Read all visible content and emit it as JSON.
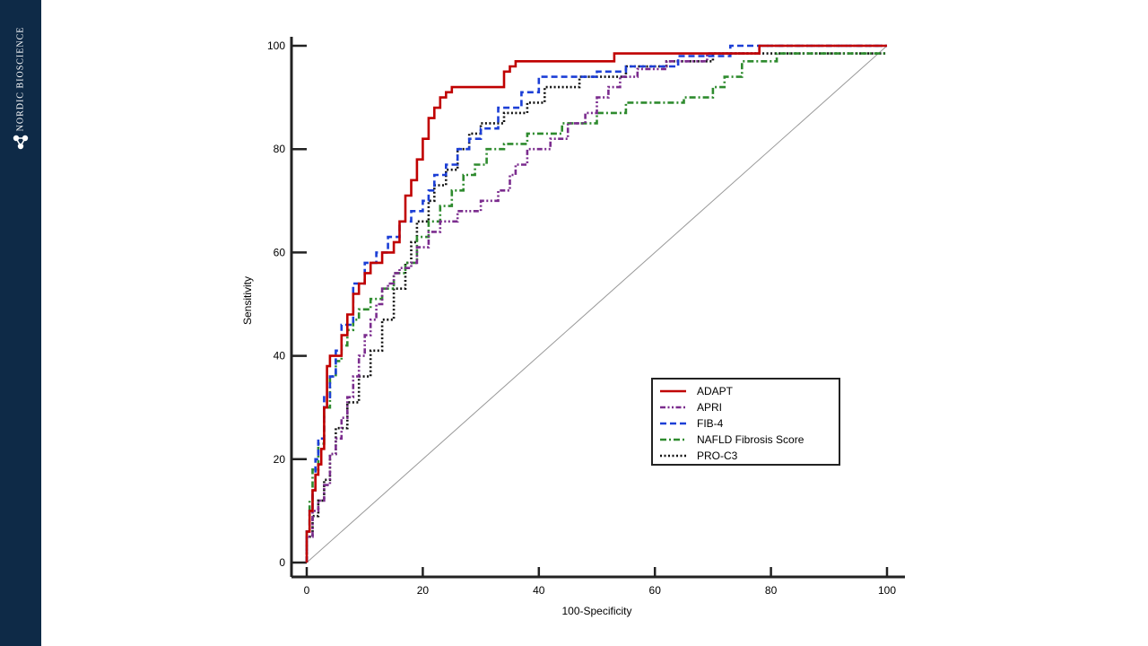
{
  "brand": {
    "name": "NORDIC BIOSCIENCE",
    "logo_icon": "molecule-icon",
    "sidebar_color": "#0e2a47"
  },
  "chart_data": {
    "type": "line",
    "title": "",
    "xlabel": "100-Specificity",
    "ylabel": "Sensitivity",
    "xlim": [
      0,
      100
    ],
    "ylim": [
      0,
      100
    ],
    "xticks": [
      0,
      20,
      40,
      60,
      80,
      100
    ],
    "yticks": [
      0,
      20,
      40,
      60,
      80,
      100
    ],
    "grid": false,
    "legend_position": "bottom-right",
    "reference_line": {
      "x": [
        0,
        100
      ],
      "y": [
        0,
        100
      ],
      "color": "#999999"
    },
    "series": [
      {
        "name": "ADAPT",
        "color": "#c00000",
        "dash": "solid",
        "x": [
          0,
          0,
          0.5,
          0.5,
          1,
          1,
          1.5,
          1.5,
          2,
          2,
          2.5,
          2.5,
          3,
          3,
          3.5,
          3.5,
          4,
          4,
          6,
          6,
          7,
          7,
          8,
          8,
          9,
          9,
          10,
          10,
          11,
          11,
          13,
          13,
          15,
          15,
          16,
          16,
          17,
          17,
          18,
          18,
          19,
          19,
          20,
          20,
          21,
          21,
          22,
          22,
          23,
          23,
          24,
          24,
          25,
          25,
          26,
          26,
          34,
          34,
          35,
          35,
          36,
          36,
          53,
          53,
          78,
          78,
          100
        ],
        "y": [
          0,
          6,
          6,
          10,
          10,
          14,
          14,
          17,
          17,
          19,
          19,
          22,
          22,
          30,
          30,
          38,
          38,
          40,
          40,
          44,
          44,
          48,
          48,
          52,
          52,
          54,
          54,
          56,
          56,
          58,
          58,
          60,
          60,
          62,
          62,
          66,
          66,
          71,
          71,
          74,
          74,
          78,
          78,
          82,
          82,
          86,
          86,
          88,
          88,
          90,
          90,
          91,
          91,
          92,
          92,
          92,
          92,
          95,
          95,
          96,
          96,
          97,
          97,
          98.5,
          98.5,
          100,
          100
        ]
      },
      {
        "name": "APRI",
        "color": "#7b2c8e",
        "dash": "dash-dot-dot",
        "x": [
          0,
          0,
          1,
          1,
          2,
          2,
          3,
          3,
          4,
          4,
          5,
          5,
          6,
          6,
          7,
          7,
          8,
          8,
          9,
          9,
          10,
          10,
          11,
          11,
          12,
          12,
          13,
          13,
          14,
          14,
          15,
          15,
          16,
          16,
          18,
          18,
          19,
          19,
          21,
          21,
          23,
          23,
          26,
          26,
          30,
          30,
          33,
          33,
          35,
          35,
          36,
          36,
          38,
          38,
          42,
          42,
          45,
          45,
          48,
          48,
          50,
          50,
          52,
          52,
          54,
          54,
          57,
          57,
          62,
          62,
          69,
          69,
          78,
          78,
          100
        ],
        "y": [
          0,
          5,
          5,
          10,
          10,
          12,
          12,
          15,
          15,
          21,
          21,
          24,
          24,
          28,
          28,
          32,
          32,
          36,
          36,
          40,
          40,
          44,
          44,
          47,
          47,
          50,
          50,
          53,
          53,
          54,
          54,
          56,
          56,
          57,
          57,
          58,
          58,
          61,
          61,
          64,
          64,
          66,
          66,
          68,
          68,
          70,
          70,
          72,
          72,
          75,
          75,
          77,
          77,
          80,
          80,
          82,
          82,
          85,
          85,
          87,
          87,
          90,
          90,
          92,
          92,
          94,
          94,
          95.5,
          95.5,
          97,
          97,
          98.5,
          98.5,
          100,
          100
        ]
      },
      {
        "name": "FIB-4",
        "color": "#1c3fd6",
        "dash": "dashed",
        "x": [
          0,
          0,
          0.5,
          0.5,
          1,
          1,
          1.5,
          1.5,
          2,
          2,
          3,
          3,
          4,
          4,
          5,
          5,
          6,
          6,
          8,
          8,
          10,
          10,
          12,
          12,
          14,
          14,
          16,
          16,
          18,
          18,
          20,
          20,
          21,
          21,
          22,
          22,
          24,
          24,
          26,
          26,
          28,
          28,
          30,
          30,
          33,
          33,
          37,
          37,
          40,
          40,
          50,
          50,
          55,
          55,
          64,
          64,
          73,
          73,
          80,
          80,
          100
        ],
        "y": [
          0,
          6,
          6,
          10,
          10,
          14,
          14,
          20,
          20,
          24,
          24,
          32,
          32,
          36,
          36,
          41,
          41,
          46,
          46,
          54,
          54,
          58,
          58,
          60,
          60,
          63,
          63,
          66,
          66,
          68,
          68,
          70,
          70,
          72,
          72,
          75,
          75,
          77,
          77,
          80,
          80,
          82,
          82,
          84,
          84,
          88,
          88,
          91,
          91,
          94,
          94,
          95,
          95,
          96,
          96,
          98,
          98,
          100,
          100,
          100,
          100
        ]
      },
      {
        "name": "NAFLD Fibrosis Score",
        "color": "#2e8b2e",
        "dash": "dash-dot",
        "x": [
          0,
          0,
          0.5,
          0.5,
          1,
          1,
          2,
          2,
          3,
          3,
          4,
          4,
          5,
          5,
          6,
          6,
          7,
          7,
          8,
          8,
          9,
          9,
          11,
          11,
          13,
          13,
          15,
          15,
          17,
          17,
          19,
          19,
          21,
          21,
          23,
          23,
          25,
          25,
          27,
          27,
          29,
          29,
          31,
          31,
          34,
          34,
          38,
          38,
          44,
          44,
          50,
          50,
          55,
          55,
          65,
          65,
          70,
          70,
          72,
          72,
          75,
          75,
          81,
          81,
          100
        ],
        "y": [
          0,
          6,
          6,
          12,
          12,
          18,
          18,
          23,
          23,
          30,
          30,
          36,
          36,
          39,
          39,
          42,
          42,
          45,
          45,
          47,
          47,
          49,
          49,
          51,
          51,
          53,
          53,
          56,
          56,
          58,
          58,
          63,
          63,
          66,
          66,
          69,
          69,
          72,
          72,
          75,
          75,
          77,
          77,
          80,
          80,
          81,
          81,
          83,
          83,
          85,
          85,
          87,
          87,
          89,
          89,
          90,
          90,
          92,
          92,
          94,
          94,
          97,
          97,
          98.5,
          98.5
        ]
      },
      {
        "name": "PRO-C3",
        "color": "#111111",
        "dash": "dotted",
        "x": [
          0,
          0,
          1,
          1,
          2,
          2,
          3,
          3,
          4,
          4,
          5,
          5,
          7,
          7,
          9,
          9,
          11,
          11,
          13,
          13,
          15,
          15,
          17,
          17,
          18,
          18,
          19,
          19,
          21,
          21,
          22,
          22,
          24,
          24,
          26,
          26,
          28,
          28,
          30,
          30,
          34,
          34,
          38,
          38,
          41,
          41,
          47,
          47,
          55,
          55,
          62,
          62,
          70,
          70,
          88,
          88,
          100
        ],
        "y": [
          0,
          5,
          5,
          9,
          9,
          12,
          12,
          16,
          16,
          21,
          21,
          26,
          26,
          31,
          31,
          36,
          36,
          41,
          41,
          47,
          47,
          53,
          53,
          58,
          58,
          62,
          62,
          66,
          66,
          70,
          70,
          73,
          73,
          76,
          76,
          80,
          80,
          83,
          83,
          85,
          85,
          87,
          87,
          89,
          89,
          92,
          92,
          94,
          94,
          96,
          96,
          97,
          97,
          98.5,
          98.5,
          98.5,
          98.5
        ]
      }
    ]
  }
}
